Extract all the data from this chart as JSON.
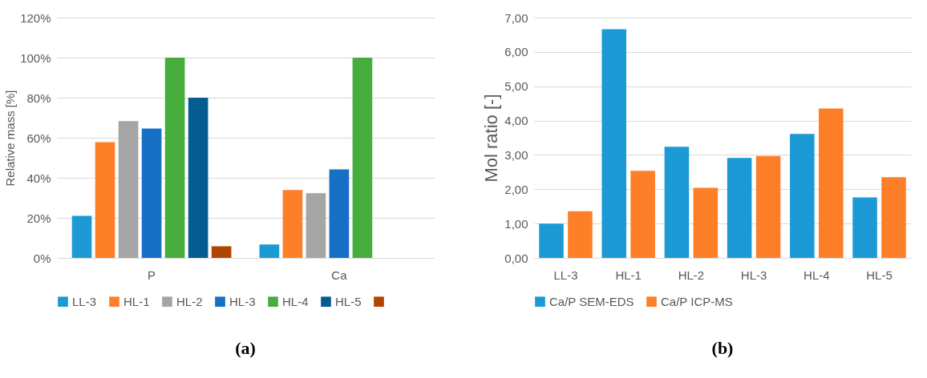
{
  "chart_data": [
    {
      "type": "bar",
      "title": "(a)",
      "ylabel": "Relative mass [%]",
      "categories": [
        "P",
        "Ca"
      ],
      "series": [
        {
          "name": "LL-3",
          "color": "#1b9ad6",
          "values": [
            21.0,
            6.7
          ]
        },
        {
          "name": "HL-1",
          "color": "#fd7f28",
          "values": [
            57.8,
            33.9
          ]
        },
        {
          "name": "HL-2",
          "color": "#a5a5a5",
          "values": [
            68.3,
            32.3
          ]
        },
        {
          "name": "HL-3",
          "color": "#1670c6",
          "values": [
            64.6,
            44.2
          ]
        },
        {
          "name": "HL-4",
          "color": "#46ad3c",
          "values": [
            100,
            100
          ]
        },
        {
          "name": "HL-5",
          "color": "#055c93",
          "values": [
            80,
            null
          ]
        },
        {
          "color": "#b04500",
          "values": [
            5.8,
            null
          ]
        }
      ],
      "ylim": [
        0,
        120
      ],
      "yticks": [
        {
          "value": 0,
          "label": "0%"
        },
        {
          "value": 20,
          "label": "20%"
        },
        {
          "value": 40,
          "label": "40%"
        },
        {
          "value": 60,
          "label": "60%"
        },
        {
          "value": 80,
          "label": "80%"
        },
        {
          "value": 100,
          "label": "100%"
        },
        {
          "value": 120,
          "label": "120%"
        }
      ],
      "grid": "y",
      "legend": "bottom"
    },
    {
      "type": "bar",
      "title": "(b)",
      "ylabel": "Mol ratio [-]",
      "categories": [
        "LL-3",
        "HL-1",
        "HL-2",
        "HL-3",
        "HL-4",
        "HL-5"
      ],
      "series": [
        {
          "name": "Ca/P SEM-EDS",
          "color": "#1b9ad6",
          "values": [
            1.0,
            6.66,
            3.24,
            2.91,
            3.61,
            1.76
          ]
        },
        {
          "name": "Ca/P ICP-MS",
          "color": "#fd7f28",
          "values": [
            1.36,
            2.54,
            2.04,
            2.97,
            4.35,
            2.35
          ]
        }
      ],
      "ylim": [
        0,
        7
      ],
      "yticks": [
        {
          "value": 0,
          "label": "0,00"
        },
        {
          "value": 1,
          "label": "1,00"
        },
        {
          "value": 2,
          "label": "2,00"
        },
        {
          "value": 3,
          "label": "3,00"
        },
        {
          "value": 4,
          "label": "4,00"
        },
        {
          "value": 5,
          "label": "5,00"
        },
        {
          "value": 6,
          "label": "6,00"
        },
        {
          "value": 7,
          "label": "7,00"
        }
      ],
      "grid": "y",
      "legend": "bottom"
    }
  ]
}
